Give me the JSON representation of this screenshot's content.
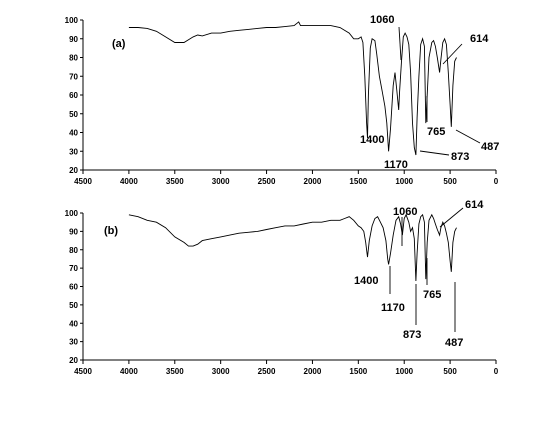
{
  "chart_data": [
    {
      "type": "line",
      "panel_label": "(a)",
      "xlim": [
        4500,
        0
      ],
      "ylim": [
        20,
        100
      ],
      "x_ticks": [
        4500,
        4000,
        3500,
        3000,
        2500,
        2000,
        1500,
        1000,
        500,
        0
      ],
      "y_ticks": [
        20,
        30,
        40,
        50,
        60,
        70,
        80,
        90,
        100
      ],
      "series": [
        {
          "x": [
            4000,
            3900,
            3800,
            3700,
            3600,
            3500,
            3400,
            3350,
            3300,
            3250,
            3200,
            3100,
            3000,
            2900,
            2800,
            2700,
            2600,
            2500,
            2400,
            2300,
            2200,
            2150,
            2130,
            2100,
            2000,
            1900,
            1800,
            1700,
            1600,
            1550,
            1500,
            1470,
            1450,
            1430,
            1410,
            1400,
            1390,
            1370,
            1350,
            1320,
            1300,
            1270,
            1240,
            1210,
            1190,
            1170,
            1150,
            1120,
            1100,
            1080,
            1060,
            1050,
            1030,
            1010,
            990,
            970,
            950,
            930,
            910,
            890,
            873,
            860,
            840,
            820,
            800,
            780,
            765,
            750,
            730,
            700,
            680,
            660,
            640,
            614,
            600,
            580,
            560,
            540,
            520,
            500,
            487,
            470,
            450,
            430
          ],
          "y": [
            96,
            96,
            95.5,
            94,
            91,
            88,
            88,
            89.5,
            91,
            92,
            91.5,
            93,
            93,
            94,
            94.5,
            95,
            95.5,
            96,
            96,
            96.5,
            97,
            99,
            97,
            97,
            97,
            97,
            97,
            96,
            93,
            90,
            90,
            91,
            88,
            70,
            45,
            37,
            60,
            85,
            90,
            89,
            82,
            70,
            62,
            54,
            45,
            30,
            42,
            65,
            72,
            62,
            52,
            62,
            78,
            91,
            93,
            91,
            87,
            72,
            45,
            32,
            28,
            48,
            70,
            87,
            90,
            86,
            45,
            60,
            80,
            88,
            89,
            86,
            80,
            72,
            79,
            88,
            90,
            87,
            72,
            55,
            43,
            65,
            78,
            80
          ]
        }
      ],
      "annotations": [
        "1060",
        "614",
        "1400",
        "765",
        "487",
        "1170",
        "873"
      ]
    },
    {
      "type": "line",
      "panel_label": "(b)",
      "xlim": [
        4500,
        0
      ],
      "ylim": [
        20,
        100
      ],
      "x_ticks": [
        4500,
        4000,
        3500,
        3000,
        2500,
        2000,
        1500,
        1000,
        500,
        0
      ],
      "y_ticks": [
        20,
        30,
        40,
        50,
        60,
        70,
        80,
        90,
        100
      ],
      "series": [
        {
          "x": [
            4000,
            3900,
            3800,
            3700,
            3600,
            3500,
            3400,
            3350,
            3300,
            3250,
            3200,
            3100,
            3000,
            2900,
            2800,
            2700,
            2600,
            2500,
            2400,
            2300,
            2200,
            2100,
            2000,
            1900,
            1800,
            1700,
            1650,
            1600,
            1550,
            1500,
            1470,
            1440,
            1420,
            1400,
            1380,
            1350,
            1320,
            1290,
            1260,
            1230,
            1200,
            1180,
            1170,
            1150,
            1120,
            1090,
            1060,
            1040,
            1020,
            1000,
            980,
            950,
            930,
            910,
            890,
            873,
            860,
            840,
            820,
            800,
            780,
            765,
            750,
            730,
            700,
            680,
            660,
            640,
            614,
            600,
            580,
            560,
            540,
            520,
            500,
            487,
            470,
            450,
            430
          ],
          "y": [
            99,
            98,
            96,
            95,
            92,
            87,
            84,
            82,
            82,
            83,
            85,
            86,
            87,
            88,
            89,
            89.5,
            90,
            91,
            92,
            93,
            93,
            94,
            95,
            95,
            96,
            96,
            97,
            98,
            96,
            93,
            92,
            90,
            84,
            76,
            85,
            93,
            97,
            98,
            95,
            92,
            85,
            75,
            72,
            78,
            88,
            96,
            98,
            94,
            88,
            97,
            99,
            95,
            90,
            92,
            86,
            63,
            78,
            94,
            98,
            99,
            95,
            64,
            84,
            96,
            99,
            97,
            94,
            91,
            88,
            92,
            95,
            93,
            89,
            84,
            74,
            68,
            84,
            90,
            92
          ]
        }
      ],
      "annotations": [
        "1060",
        "614",
        "1400",
        "1170",
        "765",
        "873",
        "487"
      ]
    }
  ]
}
